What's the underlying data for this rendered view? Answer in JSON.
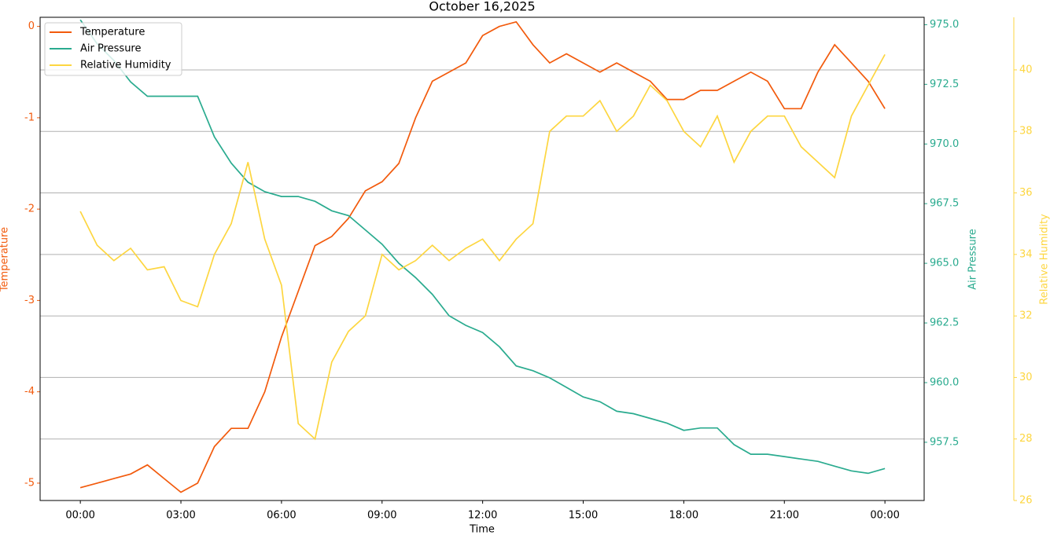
{
  "chart_data": {
    "type": "line",
    "title": "October 16,2025",
    "xlabel": "Time",
    "ylabel": "Temperature",
    "y2label": "Air Pressure",
    "y3label": "Relative Humidity",
    "x": [
      0,
      0.5,
      1,
      1.5,
      2,
      2.5,
      3,
      3.5,
      4,
      4.5,
      5,
      5.5,
      6,
      6.5,
      7,
      7.5,
      8,
      8.5,
      9,
      9.5,
      10,
      10.5,
      11,
      11.5,
      12,
      12.5,
      13,
      13.5,
      14,
      14.5,
      15,
      15.5,
      16,
      16.5,
      17,
      17.5,
      18,
      18.5,
      19,
      19.5,
      20,
      20.5,
      21,
      21.5,
      22,
      22.5,
      23,
      23.5,
      24
    ],
    "xlim": [
      -1.2,
      25.17
    ],
    "xticks": [
      {
        "value": 0,
        "label": "00:00"
      },
      {
        "value": 3,
        "label": "03:00"
      },
      {
        "value": 6,
        "label": "06:00"
      },
      {
        "value": 9,
        "label": "09:00"
      },
      {
        "value": 12,
        "label": "12:00"
      },
      {
        "value": 15,
        "label": "15:00"
      },
      {
        "value": 18,
        "label": "18:00"
      },
      {
        "value": 21,
        "label": "21:00"
      },
      {
        "value": 24,
        "label": "00:00"
      }
    ],
    "ylim": [
      -5.19,
      0.1
    ],
    "yticks": [
      -5,
      -4,
      -3,
      -2,
      -1,
      0
    ],
    "y2lim": [
      955.06,
      975.31
    ],
    "y2ticks": [
      957.5,
      {
        "value": 960,
        "label": "960.0"
      },
      962.5,
      {
        "value": 965,
        "label": "965.0"
      },
      967.5,
      {
        "value": 970,
        "label": "970.0"
      },
      972.5,
      {
        "value": 975,
        "label": "975.0"
      }
    ],
    "y3lim": [
      26,
      41.71
    ],
    "y3ticks": [
      26,
      28,
      30,
      32,
      34,
      36,
      38,
      40
    ],
    "grid": "y3",
    "legend": "upper left",
    "series": [
      {
        "name": "Temperature",
        "color": "#f25a0c",
        "axis": "y",
        "values": [
          -5.05,
          -5.0,
          -4.95,
          -4.9,
          -4.8,
          -4.95,
          -5.1,
          -5.0,
          -4.6,
          -4.4,
          -4.4,
          -4.0,
          -3.4,
          -2.9,
          -2.4,
          -2.3,
          -2.1,
          -1.8,
          -1.7,
          -1.5,
          -1.0,
          -0.6,
          -0.5,
          -0.4,
          -0.1,
          0.0,
          0.05,
          -0.2,
          -0.4,
          -0.3,
          -0.4,
          -0.5,
          -0.4,
          -0.5,
          -0.6,
          -0.8,
          -0.8,
          -0.7,
          -0.7,
          -0.6,
          -0.5,
          -0.6,
          -0.9,
          -0.9,
          -0.5,
          -0.2,
          -0.4,
          -0.6,
          -0.9
        ]
      },
      {
        "name": "Air Pressure",
        "color": "#2aab8f",
        "axis": "y2",
        "values": [
          975.2,
          974.2,
          973.5,
          972.6,
          972.0,
          972.0,
          972.0,
          972.0,
          970.3,
          969.2,
          968.4,
          968.0,
          967.8,
          967.8,
          967.6,
          967.2,
          967.0,
          966.4,
          965.8,
          965.0,
          964.4,
          963.7,
          962.8,
          962.4,
          962.1,
          961.5,
          960.7,
          960.5,
          960.2,
          959.8,
          959.4,
          959.2,
          958.8,
          958.7,
          958.5,
          958.3,
          958.0,
          958.1,
          958.1,
          957.4,
          957.0,
          957.0,
          956.9,
          956.8,
          956.7,
          956.5,
          956.3,
          956.2,
          956.4
        ]
      },
      {
        "name": "Relative Humidity",
        "color": "#fdd640",
        "axis": "y3",
        "values": [
          35.4,
          34.3,
          33.8,
          34.2,
          33.5,
          33.6,
          32.5,
          32.3,
          34.0,
          35.0,
          37.0,
          34.5,
          33.0,
          28.5,
          28.0,
          30.5,
          31.5,
          32.0,
          34.0,
          33.5,
          33.8,
          34.3,
          33.8,
          34.2,
          34.5,
          33.8,
          34.5,
          35.0,
          38.0,
          38.5,
          38.5,
          39.0,
          38.0,
          38.5,
          39.5,
          39.0,
          38.0,
          37.5,
          38.5,
          37.0,
          38.0,
          38.5,
          38.5,
          37.5,
          37.0,
          36.5,
          38.5,
          39.5,
          40.5
        ]
      }
    ]
  }
}
